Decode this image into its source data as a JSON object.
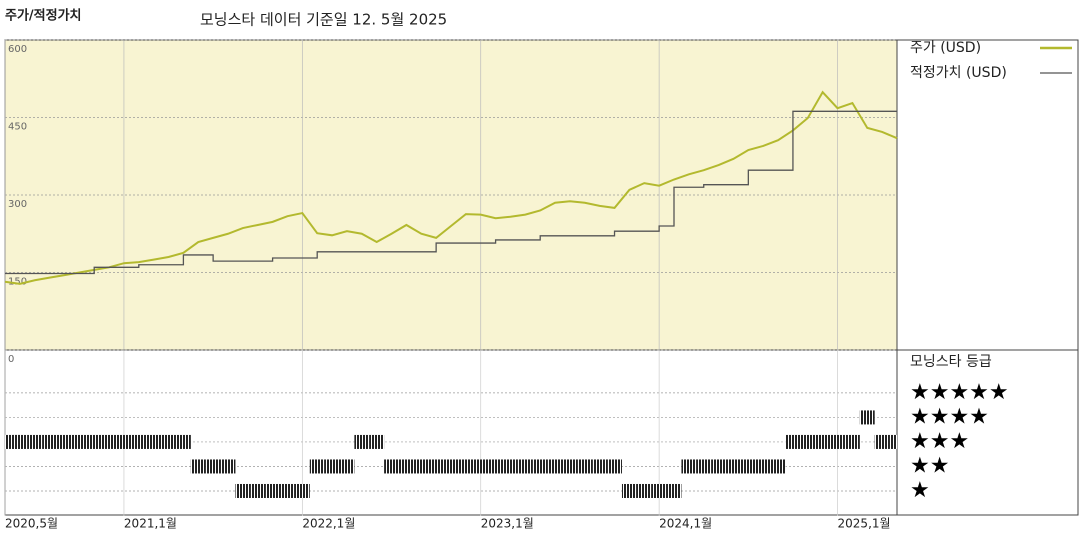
{
  "chart_data": [
    {
      "type": "line",
      "title": "주가/적정가치",
      "subtitle": "모닝스타 데이터 기준일 12. 5월 2025",
      "x": [
        "2020-05",
        "2020-06",
        "2020-07",
        "2020-08",
        "2020-09",
        "2020-10",
        "2020-11",
        "2020-12",
        "2021-01",
        "2021-02",
        "2021-03",
        "2021-04",
        "2021-05",
        "2021-06",
        "2021-07",
        "2021-08",
        "2021-09",
        "2021-10",
        "2021-11",
        "2021-12",
        "2022-01",
        "2022-02",
        "2022-03",
        "2022-04",
        "2022-05",
        "2022-06",
        "2022-07",
        "2022-08",
        "2022-09",
        "2022-10",
        "2022-11",
        "2022-12",
        "2023-01",
        "2023-02",
        "2023-03",
        "2023-04",
        "2023-05",
        "2023-06",
        "2023-07",
        "2023-08",
        "2023-09",
        "2023-10",
        "2023-11",
        "2023-12",
        "2024-01",
        "2024-02",
        "2024-03",
        "2024-04",
        "2024-05",
        "2024-06",
        "2024-07",
        "2024-08",
        "2024-09",
        "2024-10",
        "2024-11",
        "2024-12",
        "2025-01",
        "2025-02",
        "2025-03",
        "2025-04",
        "2025-05"
      ],
      "xlim": [
        "2020-05",
        "2025-05"
      ],
      "series": [
        {
          "name": "주가 (USD)",
          "color": "#b3b92e",
          "values": [
            132,
            128,
            135,
            140,
            145,
            150,
            155,
            160,
            168,
            170,
            175,
            180,
            188,
            209,
            217,
            225,
            236,
            242,
            248,
            259,
            265,
            226,
            222,
            230,
            225,
            209,
            225,
            242,
            225,
            217,
            240,
            263,
            262,
            255,
            258,
            262,
            270,
            285,
            288,
            285,
            279,
            275,
            310,
            323,
            318,
            330,
            340,
            348,
            358,
            370,
            387,
            395,
            406,
            425,
            449,
            499,
            468,
            478,
            430,
            422,
            410
          ]
        },
        {
          "name": "적정가치 (USD)",
          "color": "#555555",
          "step": true,
          "values": [
            148,
            148,
            148,
            148,
            148,
            148,
            160,
            160,
            160,
            165,
            165,
            165,
            184,
            184,
            172,
            172,
            172,
            172,
            178,
            178,
            178,
            190,
            190,
            190,
            190,
            190,
            190,
            190,
            190,
            207,
            207,
            207,
            207,
            213,
            213,
            213,
            221,
            221,
            221,
            221,
            221,
            230,
            230,
            230,
            240,
            315,
            315,
            320,
            320,
            320,
            348,
            348,
            348,
            462,
            462,
            462,
            462,
            462,
            462,
            462,
            462
          ]
        }
      ],
      "ylim": [
        0,
        600
      ],
      "yticks": [
        0,
        150,
        300,
        450,
        600
      ],
      "grid": true
    },
    {
      "type": "rating",
      "title": "모닝스타 등급",
      "x": [
        "2020-05",
        "2020-06",
        "2020-07",
        "2020-08",
        "2020-09",
        "2020-10",
        "2020-11",
        "2020-12",
        "2021-01",
        "2021-02",
        "2021-03",
        "2021-04",
        "2021-05",
        "2021-06",
        "2021-07",
        "2021-08",
        "2021-09",
        "2021-10",
        "2021-11",
        "2021-12",
        "2022-01",
        "2022-02",
        "2022-03",
        "2022-04",
        "2022-05",
        "2022-06",
        "2022-07",
        "2022-08",
        "2022-09",
        "2022-10",
        "2022-11",
        "2022-12",
        "2023-01",
        "2023-02",
        "2023-03",
        "2023-04",
        "2023-05",
        "2023-06",
        "2023-07",
        "2023-08",
        "2023-09",
        "2023-10",
        "2023-11",
        "2023-12",
        "2024-01",
        "2024-02",
        "2024-03",
        "2024-04",
        "2024-05",
        "2024-06",
        "2024-07",
        "2024-08",
        "2024-09",
        "2024-10",
        "2024-11",
        "2024-12",
        "2025-01",
        "2025-02",
        "2025-03",
        "2025-04",
        "2025-05"
      ],
      "xlim": [
        "2020-05",
        "2025-05"
      ],
      "values": [
        3,
        3,
        3,
        3,
        3,
        3,
        3,
        3,
        3,
        3,
        3,
        3,
        3,
        2,
        2,
        2,
        1,
        1,
        1,
        1,
        1,
        2,
        2,
        2,
        3,
        3,
        2,
        2,
        2,
        2,
        2,
        2,
        2,
        2,
        2,
        2,
        2,
        2,
        2,
        2,
        2,
        2,
        1,
        1,
        1,
        1,
        2,
        2,
        2,
        2,
        2,
        2,
        2,
        3,
        3,
        3,
        3,
        3,
        4,
        3,
        3
      ],
      "ylim": [
        0,
        6.75
      ],
      "yticks": [
        {
          "value": 5,
          "label": "★★★★★"
        },
        {
          "value": 4,
          "label": "★★★★"
        },
        {
          "value": 3,
          "label": "★★★"
        },
        {
          "value": 2,
          "label": "★★"
        },
        {
          "value": 1,
          "label": "★"
        }
      ],
      "xticks": [
        {
          "value": "2020-05",
          "label": "2020,5월"
        },
        {
          "value": "2021-01",
          "label": "2021,1월"
        },
        {
          "value": "2022-01",
          "label": "2022,1월"
        },
        {
          "value": "2023-01",
          "label": "2023,1월"
        },
        {
          "value": "2024-01",
          "label": "2024,1월"
        },
        {
          "value": "2025-01",
          "label": "2025,1월"
        }
      ]
    }
  ]
}
